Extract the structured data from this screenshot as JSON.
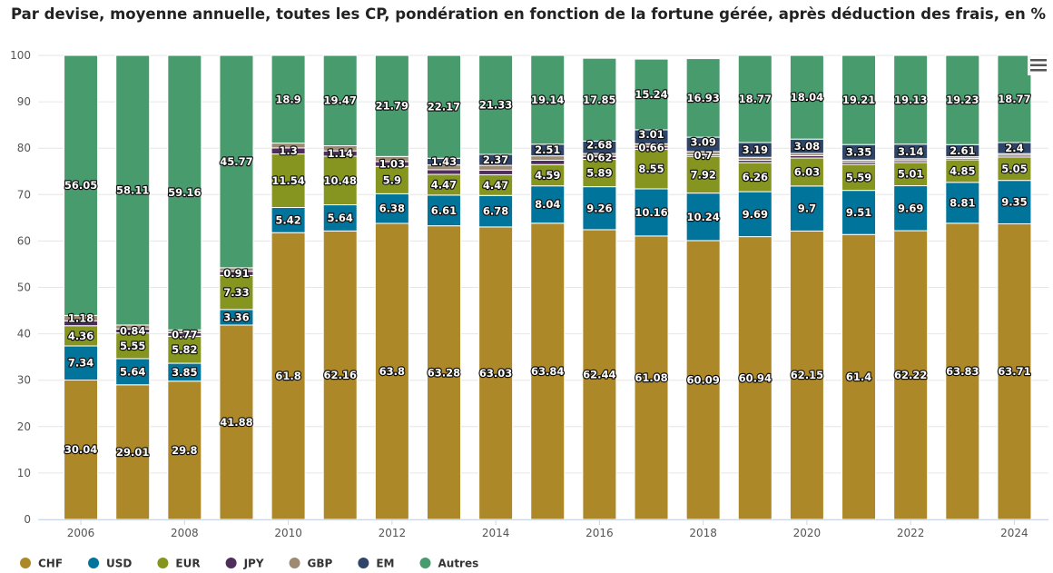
{
  "chart_data": {
    "type": "bar",
    "stacked": true,
    "title": "Par devise, moyenne annuelle, toutes les CP, pondération en fonction de la fortune gérée, après déduction des frais, en %",
    "ylim": [
      0,
      100
    ],
    "yticks": [
      0,
      10,
      20,
      30,
      40,
      50,
      60,
      70,
      80,
      90,
      100
    ],
    "grid": true,
    "legend": "bottom-left",
    "categories": [
      "2006",
      "2007",
      "2008",
      "2009",
      "2010",
      "2011",
      "2012",
      "2013",
      "2014",
      "2015",
      "2016",
      "2017",
      "2018",
      "2019",
      "2020",
      "2021",
      "2022",
      "2023",
      "2024"
    ],
    "xtick_labels": [
      "2006",
      "2008",
      "2010",
      "2012",
      "2014",
      "2016",
      "2018",
      "2020",
      "2022",
      "2024"
    ],
    "series": [
      {
        "name": "CHF",
        "color": "#ad8829",
        "values": [
          30.04,
          29.01,
          29.8,
          41.88,
          61.8,
          62.16,
          63.8,
          63.28,
          63.03,
          63.84,
          62.44,
          61.08,
          60.09,
          60.94,
          62.15,
          61.4,
          62.22,
          63.83,
          63.71
        ],
        "unlabeled": []
      },
      {
        "name": "USD",
        "color": "#00749b",
        "values": [
          7.34,
          5.64,
          3.85,
          3.36,
          5.42,
          5.64,
          6.38,
          6.61,
          6.78,
          8.04,
          9.26,
          10.16,
          10.24,
          9.69,
          9.7,
          9.51,
          9.69,
          8.81,
          9.35
        ],
        "unlabeled": []
      },
      {
        "name": "EUR",
        "color": "#85951f",
        "values": [
          4.36,
          5.55,
          5.82,
          7.33,
          11.54,
          10.48,
          5.9,
          4.47,
          4.47,
          4.59,
          5.89,
          8.55,
          7.92,
          6.26,
          6.03,
          5.59,
          5.01,
          4.85,
          5.05
        ],
        "unlabeled": []
      },
      {
        "name": "JPY",
        "color": "#4f2d5c",
        "values": [
          1.03,
          0.84,
          0.77,
          0.91,
          1.3,
          1.14,
          1.03,
          1.0,
          1.0,
          0.94,
          0.64,
          0.5,
          0.33,
          0.5,
          0.5,
          0.47,
          0.4,
          0.33,
          0.36
        ],
        "unlabeled": [
          0,
          7,
          8,
          9,
          10,
          11,
          12,
          13,
          14,
          15,
          16,
          17,
          18
        ]
      },
      {
        "name": "GBP",
        "color": "#9d8a70",
        "values": [
          1.18,
          0.85,
          0.6,
          0.75,
          1.04,
          1.11,
          1.1,
          1.04,
          1.02,
          0.94,
          0.62,
          0.66,
          0.7,
          0.65,
          0.5,
          0.47,
          0.41,
          0.34,
          0.36
        ],
        "unlabeled": [
          1,
          2,
          3,
          4,
          5,
          6,
          7,
          8,
          9,
          13,
          14,
          15,
          16,
          17,
          18
        ]
      },
      {
        "name": "EM",
        "color": "#2e4468",
        "values": [
          0,
          0,
          0,
          0,
          0,
          0,
          0,
          1.43,
          2.37,
          2.51,
          2.68,
          3.01,
          3.09,
          3.19,
          3.08,
          3.35,
          3.14,
          2.61,
          2.4
        ],
        "unlabeled": [
          0,
          1,
          2,
          3,
          4,
          5,
          6
        ]
      },
      {
        "name": "Autres",
        "color": "#489b6d",
        "values": [
          56.05,
          58.11,
          59.16,
          45.77,
          18.9,
          19.47,
          21.79,
          22.17,
          21.33,
          19.14,
          17.85,
          15.24,
          16.93,
          18.77,
          18.04,
          19.21,
          19.13,
          19.23,
          18.77
        ],
        "unlabeled": []
      }
    ]
  },
  "menu_icon": "hamburger-menu-icon"
}
